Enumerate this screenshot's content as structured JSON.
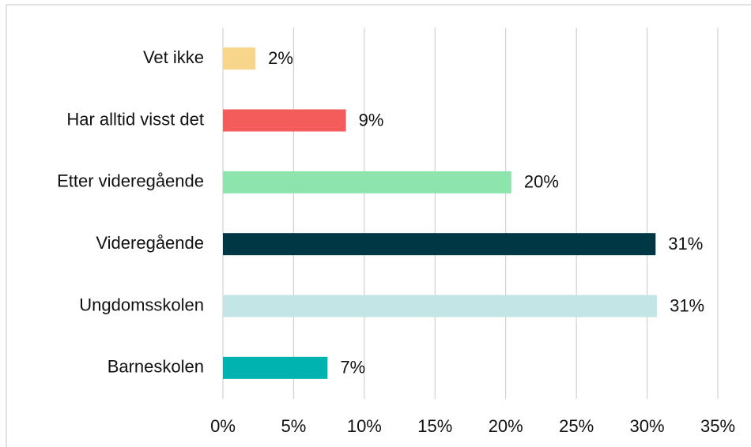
{
  "chart_data": {
    "type": "bar",
    "orientation": "horizontal",
    "categories": [
      "Vet ikke",
      "Har alltid visst det",
      "Etter videregående",
      "Videregående",
      "Ungdomsskolen",
      "Barneskolen"
    ],
    "values": [
      2.3,
      8.7,
      20.4,
      30.6,
      30.7,
      7.4
    ],
    "value_labels": [
      "2%",
      "9%",
      "20%",
      "31%",
      "31%",
      "7%"
    ],
    "colors": [
      "#f7d58a",
      "#f45b5b",
      "#8de5ad",
      "#003745",
      "#c4e5e6",
      "#00b3b0"
    ],
    "xlim": [
      0,
      35
    ],
    "xticks": [
      {
        "value": 0,
        "label": "0%"
      },
      {
        "value": 5,
        "label": "5%"
      },
      {
        "value": 10,
        "label": "10%"
      },
      {
        "value": 15,
        "label": "15%"
      },
      {
        "value": 20,
        "label": "20%"
      },
      {
        "value": 25,
        "label": "25%"
      },
      {
        "value": 30,
        "label": "30%"
      },
      {
        "value": 35,
        "label": "35%"
      }
    ],
    "grid": true
  }
}
